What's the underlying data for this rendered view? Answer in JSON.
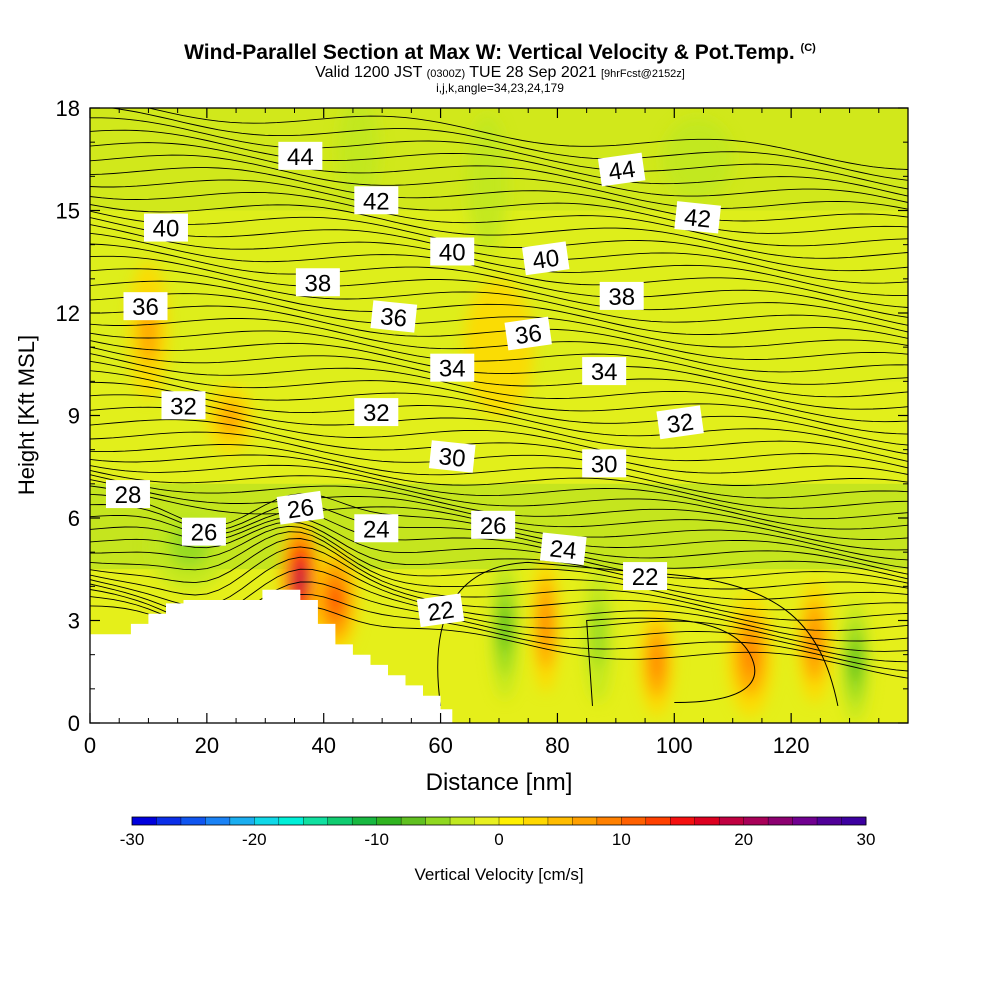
{
  "title": {
    "main": "Wind-Parallel Section at Max W: Vertical Velocity & Pot.Temp.",
    "copyright": "(C)",
    "valid_prefix": "Valid 1200 JST",
    "utc": "(0300Z)",
    "date": "TUE 28 Sep 2021",
    "forecast": "[9hrFcst@2152z]",
    "indices": "i,j,k,angle=34,23,24,179"
  },
  "chart_data": {
    "type": "heatmap",
    "xlabel": "Distance [nm]",
    "ylabel": "Height [Kft MSL]",
    "xlim": [
      0,
      140
    ],
    "ylim": [
      0,
      18
    ],
    "x_ticks": [
      0,
      20,
      40,
      60,
      80,
      100,
      120
    ],
    "y_ticks": [
      0,
      3,
      6,
      9,
      12,
      15,
      18
    ],
    "terrain": [
      [
        0,
        2.6
      ],
      [
        7,
        2.6
      ],
      [
        7,
        2.9
      ],
      [
        10,
        2.9
      ],
      [
        10,
        3.2
      ],
      [
        13,
        3.2
      ],
      [
        13,
        3.5
      ],
      [
        16,
        3.5
      ],
      [
        16,
        3.6
      ],
      [
        29.5,
        3.6
      ],
      [
        29.5,
        3.9
      ],
      [
        36,
        3.9
      ],
      [
        36,
        3.6
      ],
      [
        39,
        3.6
      ],
      [
        39,
        2.9
      ],
      [
        42,
        2.9
      ],
      [
        42,
        2.3
      ],
      [
        45,
        2.3
      ],
      [
        45,
        2.0
      ],
      [
        48,
        2.0
      ],
      [
        48,
        1.7
      ],
      [
        51,
        1.7
      ],
      [
        51,
        1.4
      ],
      [
        54,
        1.4
      ],
      [
        54,
        1.1
      ],
      [
        57,
        1.1
      ],
      [
        57,
        0.8
      ],
      [
        60,
        0.8
      ],
      [
        60,
        0.4
      ],
      [
        62,
        0.4
      ],
      [
        62,
        0
      ]
    ],
    "vertical_velocity_features": [
      {
        "x": 36,
        "y": 4.2,
        "rx": 3.5,
        "ry": 1.8,
        "value": 22,
        "sign": "up"
      },
      {
        "x": 42,
        "y": 3.6,
        "rx": 4,
        "ry": 1.6,
        "value": 12,
        "sign": "up"
      },
      {
        "x": 78,
        "y": 2.9,
        "rx": 2.5,
        "ry": 2.0,
        "value": 10,
        "sign": "up"
      },
      {
        "x": 97,
        "y": 1.8,
        "rx": 3,
        "ry": 1.6,
        "value": 8,
        "sign": "up"
      },
      {
        "x": 113,
        "y": 2.0,
        "rx": 4,
        "ry": 1.8,
        "value": 8,
        "sign": "up"
      },
      {
        "x": 124,
        "y": 2.4,
        "rx": 3,
        "ry": 1.8,
        "value": 10,
        "sign": "up"
      },
      {
        "x": 71,
        "y": 2.8,
        "rx": 2.5,
        "ry": 2.1,
        "value": -10,
        "sign": "down"
      },
      {
        "x": 87,
        "y": 2.6,
        "rx": 2.5,
        "ry": 2.0,
        "value": -6,
        "sign": "down"
      },
      {
        "x": 131,
        "y": 1.8,
        "rx": 2.5,
        "ry": 1.8,
        "value": -9,
        "sign": "down"
      },
      {
        "x": 17,
        "y": 5.2,
        "rx": 7,
        "ry": 1.3,
        "value": -7,
        "sign": "down"
      },
      {
        "x": 46,
        "y": 16.8,
        "rx": 3.5,
        "ry": 1.6,
        "value": -4,
        "sign": "down"
      },
      {
        "x": 68,
        "y": 15.8,
        "rx": 3.5,
        "ry": 2.0,
        "value": -4,
        "sign": "down"
      },
      {
        "x": 104,
        "y": 16.5,
        "rx": 6,
        "ry": 1.2,
        "value": -3,
        "sign": "down"
      },
      {
        "x": 10,
        "y": 11.5,
        "rx": 3.5,
        "ry": 2.0,
        "value": 5,
        "sign": "up"
      },
      {
        "x": 24,
        "y": 8.9,
        "rx": 4,
        "ry": 1.0,
        "value": 6,
        "sign": "up"
      },
      {
        "x": 70,
        "y": 11.0,
        "rx": 6,
        "ry": 2.0,
        "value": 4,
        "sign": "up"
      }
    ],
    "potential_temperature_labels": [
      {
        "text": "44",
        "x": 36,
        "y": 16.6
      },
      {
        "text": "44",
        "x": 91,
        "y": 16.2
      },
      {
        "text": "42",
        "x": 49,
        "y": 15.3
      },
      {
        "text": "42",
        "x": 104,
        "y": 14.8
      },
      {
        "text": "40",
        "x": 13,
        "y": 14.5
      },
      {
        "text": "40",
        "x": 62,
        "y": 13.8
      },
      {
        "text": "40",
        "x": 78,
        "y": 13.6
      },
      {
        "text": "38",
        "x": 39,
        "y": 12.9
      },
      {
        "text": "38",
        "x": 91,
        "y": 12.5
      },
      {
        "text": "36",
        "x": 9.5,
        "y": 12.2
      },
      {
        "text": "36",
        "x": 52,
        "y": 11.9
      },
      {
        "text": "36",
        "x": 75,
        "y": 11.4
      },
      {
        "text": "34",
        "x": 62,
        "y": 10.4
      },
      {
        "text": "34",
        "x": 88,
        "y": 10.3
      },
      {
        "text": "32",
        "x": 16,
        "y": 9.3
      },
      {
        "text": "32",
        "x": 49,
        "y": 9.1
      },
      {
        "text": "32",
        "x": 101,
        "y": 8.8
      },
      {
        "text": "30",
        "x": 62,
        "y": 7.8
      },
      {
        "text": "30",
        "x": 88,
        "y": 7.6
      },
      {
        "text": "28",
        "x": 6.5,
        "y": 6.7
      },
      {
        "text": "26",
        "x": 19.5,
        "y": 5.6
      },
      {
        "text": "26",
        "x": 36,
        "y": 6.3
      },
      {
        "text": "26",
        "x": 69,
        "y": 5.8
      },
      {
        "text": "24",
        "x": 49,
        "y": 5.7
      },
      {
        "text": "24",
        "x": 81,
        "y": 5.1
      },
      {
        "text": "22",
        "x": 95,
        "y": 4.3
      },
      {
        "text": "22",
        "x": 60,
        "y": 3.3
      }
    ],
    "colorbar": {
      "label": "Vertical Velocity [cm/s]",
      "ticks": [
        -30,
        -20,
        -10,
        0,
        10,
        20,
        30
      ],
      "range": [
        -30,
        30
      ],
      "colors": [
        "#0000dd",
        "#0a2ee8",
        "#1055f0",
        "#1a82f5",
        "#1aaef0",
        "#10d8e8",
        "#00f0d8",
        "#10e0a0",
        "#10cc70",
        "#18b840",
        "#30b420",
        "#60c020",
        "#90d820",
        "#c0e820",
        "#e8f020",
        "#fff000",
        "#ffd800",
        "#ffbc00",
        "#ffa000",
        "#ff8000",
        "#ff6000",
        "#ff4000",
        "#f51010",
        "#dd0020",
        "#c00040",
        "#a80058",
        "#8c0070",
        "#700090",
        "#500098",
        "#3c00a0"
      ]
    }
  }
}
